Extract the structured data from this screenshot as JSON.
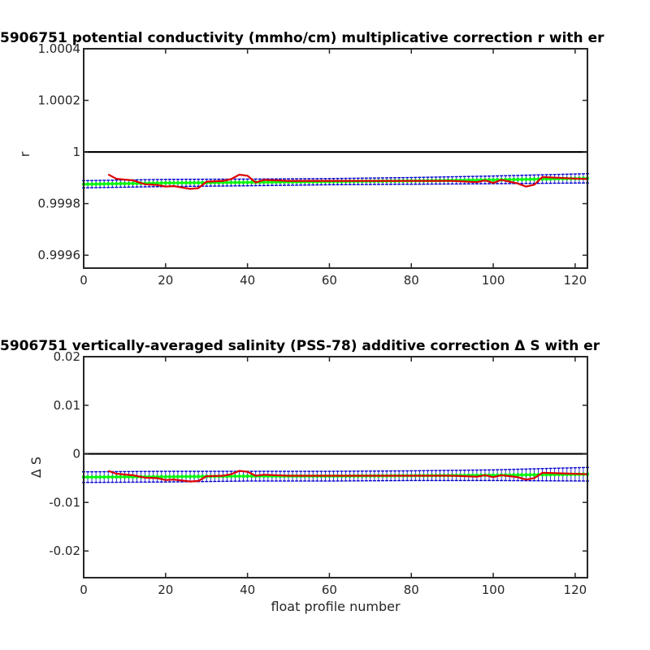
{
  "chart_data": [
    {
      "type": "line",
      "title": "5906751 potential conductivity (mmho/cm) multiplicative correction r with er",
      "xlabel": "",
      "ylabel": "r",
      "xlim": [
        0,
        123
      ],
      "ylim": [
        0.99955,
        1.0004
      ],
      "xticks": [
        0,
        20,
        40,
        60,
        80,
        100,
        120
      ],
      "xtick_labels": [
        "0",
        "20",
        "40",
        "60",
        "80",
        "100",
        "120"
      ],
      "yticks": [
        0.9996,
        0.9998,
        1.0,
        1.0002,
        1.0004
      ],
      "ytick_labels": [
        "0.9996",
        "0.9998",
        "1",
        "1.0002",
        "1.0004"
      ],
      "grid": false,
      "reference_line": {
        "y": 1.0,
        "color": "#000000"
      },
      "series": [
        {
          "role": "fit-with-error",
          "color": "#00ff00",
          "error_color": "#0000cc",
          "x": [
            0,
            20,
            40,
            60,
            80,
            100,
            123
          ],
          "y": [
            0.999875,
            0.99988,
            0.999882,
            0.999885,
            0.999888,
            0.999892,
            0.999898
          ],
          "err": [
            1.4e-05,
            1.4e-05,
            1.3e-05,
            1.2e-05,
            1.3e-05,
            1.5e-05,
            1.8e-05
          ]
        },
        {
          "role": "profile-estimate",
          "color": "#dd0000",
          "x": [
            6,
            8,
            12,
            15,
            18,
            20,
            22,
            26,
            28,
            30,
            34,
            36,
            38,
            40,
            42,
            44,
            50,
            60,
            70,
            80,
            90,
            96,
            98,
            100,
            102,
            106,
            108,
            110,
            112,
            116,
            120,
            123
          ],
          "y": [
            0.999913,
            0.999896,
            0.99989,
            0.999875,
            0.999872,
            0.999866,
            0.999868,
            0.999857,
            0.99986,
            0.999885,
            0.999888,
            0.999895,
            0.999912,
            0.999908,
            0.999882,
            0.999892,
            0.999888,
            0.999888,
            0.999888,
            0.999888,
            0.999888,
            0.999883,
            0.99989,
            0.99988,
            0.999892,
            0.999878,
            0.999866,
            0.999873,
            0.999903,
            0.9999,
            0.999897,
            0.999895
          ]
        }
      ]
    },
    {
      "type": "line",
      "title": "5906751 vertically-averaged salinity (PSS-78) additive correction Δ S with er",
      "xlabel": "float profile number",
      "ylabel": "Δ S",
      "xlim": [
        0,
        123
      ],
      "ylim": [
        -0.0255,
        0.02
      ],
      "xticks": [
        0,
        20,
        40,
        60,
        80,
        100,
        120
      ],
      "xtick_labels": [
        "0",
        "20",
        "40",
        "60",
        "80",
        "100",
        "120"
      ],
      "yticks": [
        -0.02,
        -0.01,
        0,
        0.01,
        0.02
      ],
      "ytick_labels": [
        "-0.02",
        "-0.01",
        "0",
        "0.01",
        "0.02"
      ],
      "grid": false,
      "reference_line": {
        "y": 0,
        "color": "#000000"
      },
      "series": [
        {
          "role": "fit-with-error",
          "color": "#00ff00",
          "error_color": "#0000cc",
          "x": [
            0,
            20,
            40,
            60,
            80,
            100,
            123
          ],
          "y": [
            -0.0048,
            -0.0047,
            -0.0046,
            -0.0046,
            -0.0045,
            -0.0044,
            -0.0042
          ],
          "err": [
            0.0011,
            0.0011,
            0.001,
            0.001,
            0.001,
            0.0011,
            0.0014
          ]
        },
        {
          "role": "profile-estimate",
          "color": "#dd0000",
          "x": [
            6,
            8,
            12,
            15,
            18,
            20,
            22,
            26,
            28,
            30,
            34,
            36,
            38,
            40,
            42,
            44,
            50,
            60,
            70,
            80,
            90,
            96,
            98,
            100,
            102,
            106,
            108,
            110,
            112,
            116,
            120,
            123
          ],
          "y": [
            -0.0035,
            -0.0041,
            -0.0044,
            -0.0049,
            -0.005,
            -0.0054,
            -0.0053,
            -0.0057,
            -0.0056,
            -0.0046,
            -0.0045,
            -0.0042,
            -0.0035,
            -0.0037,
            -0.0045,
            -0.0043,
            -0.0045,
            -0.0045,
            -0.0045,
            -0.0045,
            -0.0045,
            -0.0047,
            -0.0044,
            -0.0048,
            -0.0044,
            -0.0048,
            -0.0053,
            -0.005,
            -0.0039,
            -0.004,
            -0.0041,
            -0.0042
          ]
        }
      ]
    }
  ]
}
